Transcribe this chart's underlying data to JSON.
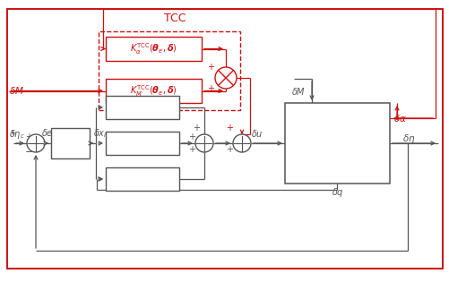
{
  "fig_width": 5.02,
  "fig_height": 3.15,
  "dpi": 100,
  "red": "#cc1111",
  "gray": "#555555",
  "background": "#ffffff"
}
